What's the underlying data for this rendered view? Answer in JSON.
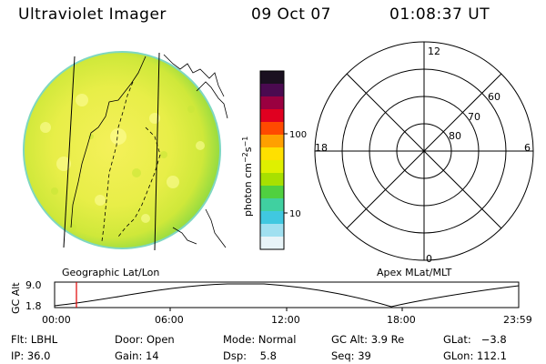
{
  "header": {
    "title": "Ultraviolet Imager",
    "date": "09 Oct 07",
    "time": "01:08:37 UT"
  },
  "image_panel": {
    "label": "Geographic Lat/Lon"
  },
  "colorbar": {
    "unit_label_main": "photon cm",
    "unit_sup_1": "−2",
    "unit_mid": "s",
    "unit_sup_2": "−1",
    "tick_labels": [
      "100",
      "10"
    ],
    "colors": [
      "#1a1020",
      "#4a0a50",
      "#9a0040",
      "#e00020",
      "#ff4a00",
      "#ffa000",
      "#ffe000",
      "#dff000",
      "#a8e000",
      "#50d040",
      "#40d0a0",
      "#40c8e0",
      "#a0e0f0",
      "#e8f4f8"
    ]
  },
  "polar_plot": {
    "label": "Apex MLat/MLT",
    "mlt_labels": {
      "top": "12",
      "bottom": "0",
      "left": "18",
      "right": "6"
    },
    "lat_labels": [
      "60",
      "70",
      "80"
    ]
  },
  "altitude_plot": {
    "ylabel": "GC Alt",
    "y_ticks": [
      "9.0",
      "1.8"
    ],
    "x_ticks": [
      "00:00",
      "06:00",
      "12:00",
      "18:00",
      "23:59"
    ]
  },
  "footer": {
    "filter_label": "Flt:",
    "filter_value": "LBHL",
    "ip_label": "IP:",
    "ip_value": "36.0",
    "door_label": "Door:",
    "door_value": "Open",
    "gain_label": "Gain:",
    "gain_value": "14",
    "mode_label": "Mode:",
    "mode_value": "Normal",
    "dsp_label": "Dsp:",
    "dsp_value": "5.8",
    "gcalt_label": "GC Alt:",
    "gcalt_value": "3.9 Re",
    "seq_label": "Seq:",
    "seq_value": "39",
    "glat_label": "GLat:",
    "glat_value": "−3.8",
    "glon_label": "GLon:",
    "glon_value": "112.1"
  }
}
